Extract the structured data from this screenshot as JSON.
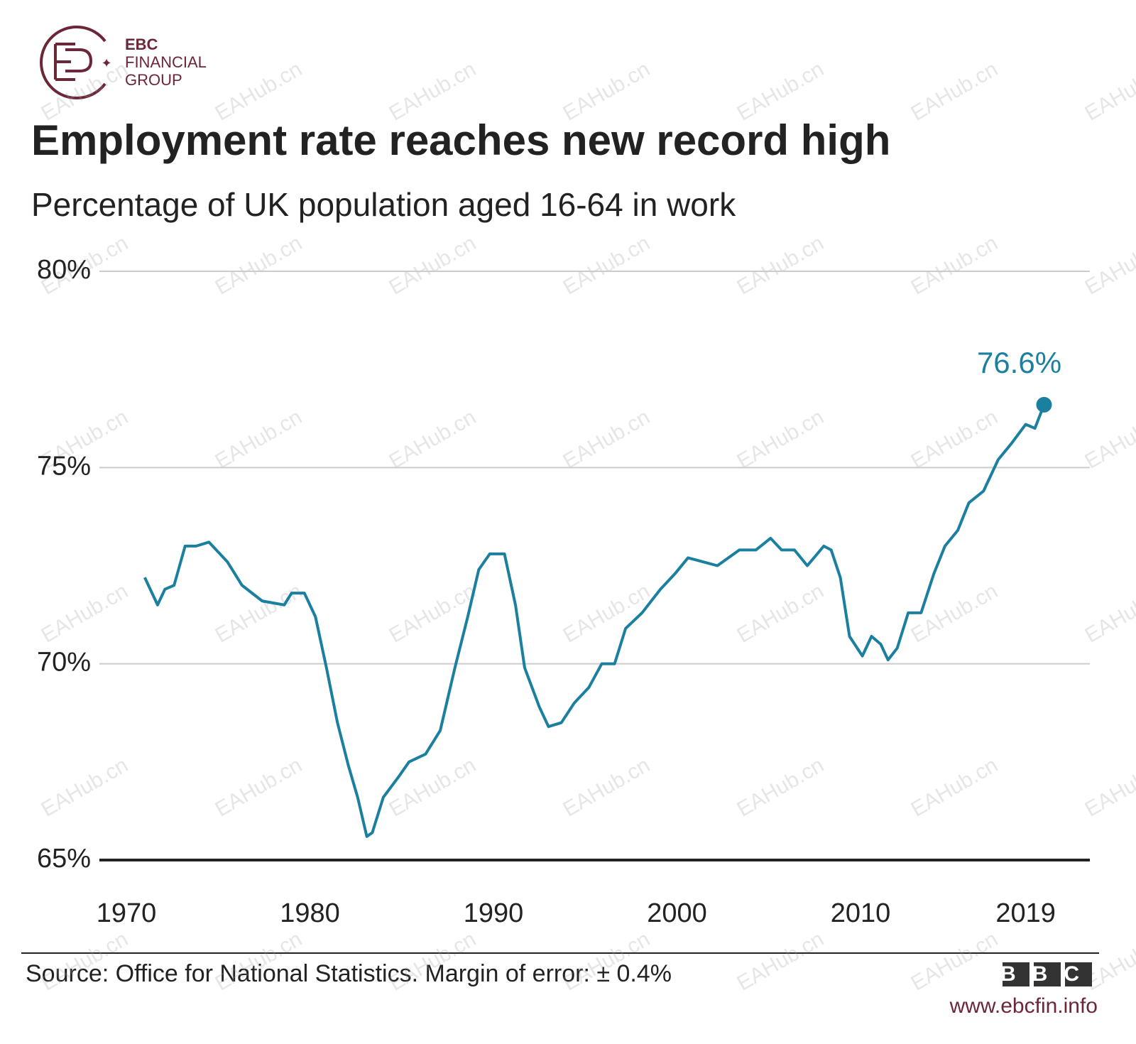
{
  "logo": {
    "line1": "EBC",
    "line2": "FINANCIAL",
    "line3": "GROUP"
  },
  "watermark": "EAHub.cn",
  "chart_data": {
    "type": "line",
    "title": "Employment rate reaches new record high",
    "subtitle": "Percentage of UK population aged 16-64 in work",
    "x": [
      1971.0,
      1971.7,
      1972.1,
      1972.6,
      1973.2,
      1973.8,
      1974.5,
      1975.5,
      1976.3,
      1977.4,
      1978.6,
      1979.0,
      1979.7,
      1980.3,
      1980.9,
      1981.5,
      1982.1,
      1982.6,
      1983.1,
      1983.4,
      1984.0,
      1984.8,
      1985.4,
      1986.3,
      1987.1,
      1987.9,
      1988.6,
      1989.2,
      1989.8,
      1990.6,
      1991.2,
      1991.7,
      1992.5,
      1993.0,
      1993.7,
      1994.4,
      1995.2,
      1995.9,
      1996.6,
      1997.2,
      1998.1,
      1999.1,
      1999.9,
      2000.6,
      2001.4,
      2002.2,
      2003.4,
      2004.3,
      2005.1,
      2005.7,
      2006.4,
      2007.1,
      2008.0,
      2008.4,
      2008.9,
      2009.4,
      2010.1,
      2010.6,
      2011.1,
      2011.5,
      2012.0,
      2012.6,
      2013.3,
      2014.0,
      2014.6,
      2015.3,
      2015.9,
      2016.7,
      2017.5,
      2018.2,
      2019.0,
      2019.5,
      2020.0
    ],
    "values": [
      72.2,
      71.5,
      71.9,
      72.0,
      73.0,
      73.0,
      73.1,
      72.6,
      72.0,
      71.6,
      71.5,
      71.8,
      71.8,
      71.2,
      69.9,
      68.5,
      67.4,
      66.6,
      65.6,
      65.7,
      66.6,
      67.1,
      67.5,
      67.7,
      68.3,
      69.9,
      71.2,
      72.4,
      72.8,
      72.8,
      71.5,
      69.9,
      68.9,
      68.4,
      68.5,
      69.0,
      69.4,
      70.0,
      70.0,
      70.9,
      71.3,
      71.9,
      72.3,
      72.7,
      72.6,
      72.5,
      72.9,
      72.9,
      73.2,
      72.9,
      72.9,
      72.5,
      73.0,
      72.9,
      72.2,
      70.7,
      70.2,
      70.7,
      70.5,
      70.1,
      70.4,
      71.3,
      71.3,
      72.3,
      73.0,
      73.4,
      74.1,
      74.4,
      75.2,
      75.6,
      76.1,
      76.0,
      76.6
    ],
    "value_labels": [
      null,
      null,
      null,
      null,
      null,
      null,
      null,
      null,
      null,
      null,
      null,
      null,
      null,
      null,
      null,
      null,
      null,
      null,
      null,
      null,
      null,
      null,
      null,
      null,
      null,
      null,
      null,
      null,
      null,
      null,
      null,
      null,
      null,
      null,
      null,
      null,
      null,
      null,
      null,
      null,
      null,
      null,
      null,
      null,
      null,
      null,
      null,
      null,
      null,
      null,
      null,
      null,
      null,
      null,
      null,
      null,
      null,
      null,
      null,
      null,
      null,
      null,
      null,
      null,
      null,
      null,
      null,
      null,
      null,
      null,
      null,
      null,
      "76.6%"
    ],
    "color": "#1b7f9f",
    "xlim": [
      1968.5,
      2022.5
    ],
    "xticks": [
      1970,
      1980,
      1990,
      2000,
      2010,
      2019
    ],
    "ylim": [
      65,
      80
    ],
    "yticks": [
      {
        "value": 65,
        "label": "65%"
      },
      {
        "value": 70,
        "label": "70%"
      },
      {
        "value": 75,
        "label": "75%"
      },
      {
        "value": 80,
        "label": "80%"
      }
    ],
    "grid": true,
    "source": "Source: Office for National Statistics. Margin of error: ± 0.4%",
    "brand": "BBC",
    "website": "www.ebcfin.info"
  }
}
